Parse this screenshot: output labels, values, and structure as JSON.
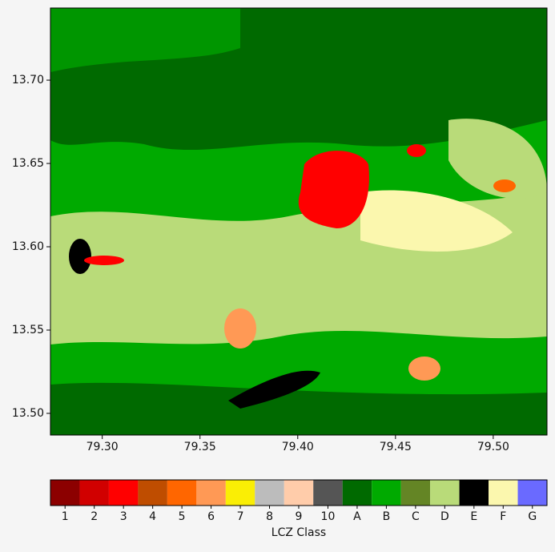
{
  "chart_data": {
    "type": "raster-map",
    "xlim": [
      79.2735,
      79.5275
    ],
    "ylim": [
      13.487,
      13.7433
    ],
    "xticks": [
      {
        "value": 79.3,
        "label": "79.30"
      },
      {
        "value": 79.35,
        "label": "79.35"
      },
      {
        "value": 79.4,
        "label": "79.40"
      },
      {
        "value": 79.45,
        "label": "79.45"
      },
      {
        "value": 79.5,
        "label": "79.50"
      }
    ],
    "yticks": [
      {
        "value": 13.5,
        "label": "13.50"
      },
      {
        "value": 13.55,
        "label": "13.55"
      },
      {
        "value": 13.6,
        "label": "13.60"
      },
      {
        "value": 13.65,
        "label": "13.65"
      },
      {
        "value": 13.7,
        "label": "13.70"
      }
    ],
    "colorbar": {
      "label": "LCZ Class",
      "categories": [
        "1",
        "2",
        "3",
        "4",
        "5",
        "6",
        "7",
        "8",
        "9",
        "10",
        "A",
        "B",
        "C",
        "D",
        "E",
        "F",
        "G"
      ],
      "colors": [
        "#8c0000",
        "#d10000",
        "#ff0000",
        "#bf4d00",
        "#ff6600",
        "#ff9955",
        "#faee05",
        "#bcbcbc",
        "#ffccaa",
        "#555555",
        "#006a00",
        "#00aa00",
        "#648525",
        "#b9db79",
        "#000000",
        "#fbf7ae",
        "#6a6aff"
      ]
    }
  }
}
